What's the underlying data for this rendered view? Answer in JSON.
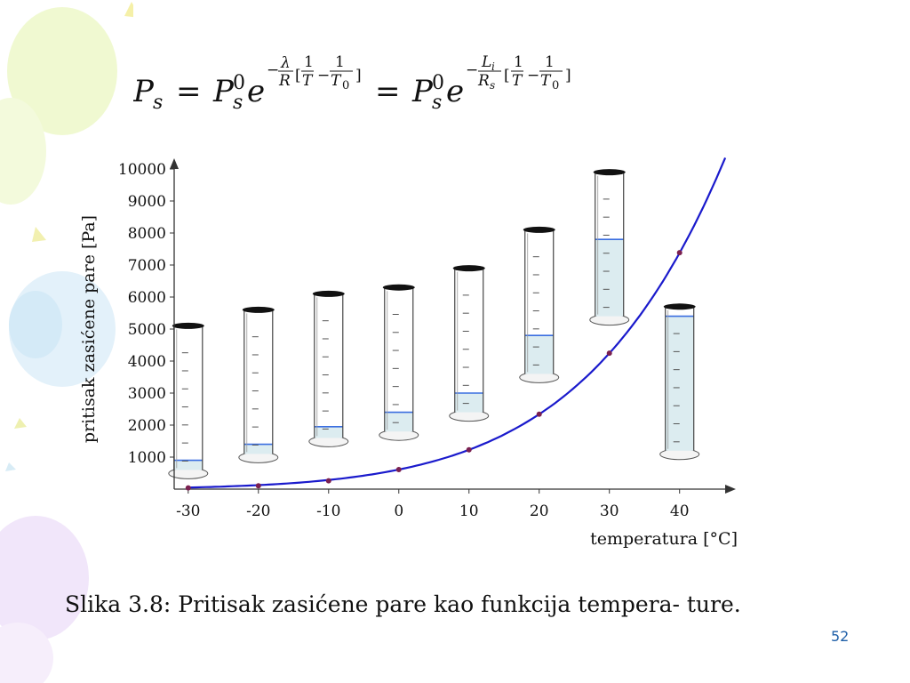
{
  "formula": {
    "latex": "P_s = P_s^0 e^{-\\frac{\\lambda}{R}[\\frac{1}{T}-\\frac{1}{T_0}]} = P_s^0 e^{-\\frac{L_i}{R_s}[\\frac{1}{T}-\\frac{1}{T_0}]}"
  },
  "chart_data": {
    "type": "line",
    "xlabel": "temperatura [°C]",
    "ylabel": "pritisak zasićene pare [Pa]",
    "x_ticks": [
      "-30",
      "-20",
      "-10",
      "0",
      "10",
      "20",
      "30",
      "40"
    ],
    "y_ticks": [
      "1000",
      "2000",
      "3000",
      "4000",
      "5000",
      "6000",
      "7000",
      "8000",
      "9000",
      "10000"
    ],
    "xlim": [
      -32,
      47
    ],
    "ylim": [
      0,
      10000
    ],
    "grid": false,
    "series": [
      {
        "x": [
          -30,
          -20,
          -10,
          0,
          10,
          20,
          30,
          40
        ],
        "y": [
          38,
          103,
          260,
          611,
          1228,
          2339,
          4246,
          7384
        ]
      }
    ],
    "curve_color": "#1a1acc",
    "marker_color": "#7a2050",
    "cylinders": [
      {
        "t": -30,
        "top": 5100,
        "base": 600,
        "level": 900
      },
      {
        "t": -20,
        "top": 5600,
        "base": 1100,
        "level": 1400
      },
      {
        "t": -10,
        "top": 6100,
        "base": 1600,
        "level": 1950
      },
      {
        "t": 0,
        "top": 6300,
        "base": 1800,
        "level": 2400
      },
      {
        "t": 10,
        "top": 6900,
        "base": 2400,
        "level": 3000
      },
      {
        "t": 20,
        "top": 8100,
        "base": 3600,
        "level": 4800
      },
      {
        "t": 30,
        "top": 9900,
        "base": 5400,
        "level": 7800
      },
      {
        "t": 40,
        "top": 5700,
        "base": 1200,
        "level": 5400
      }
    ]
  },
  "caption": "Slika 3.8: Pritisak zasićene pare kao funkcija tempera- ture.",
  "slide_number": "52"
}
